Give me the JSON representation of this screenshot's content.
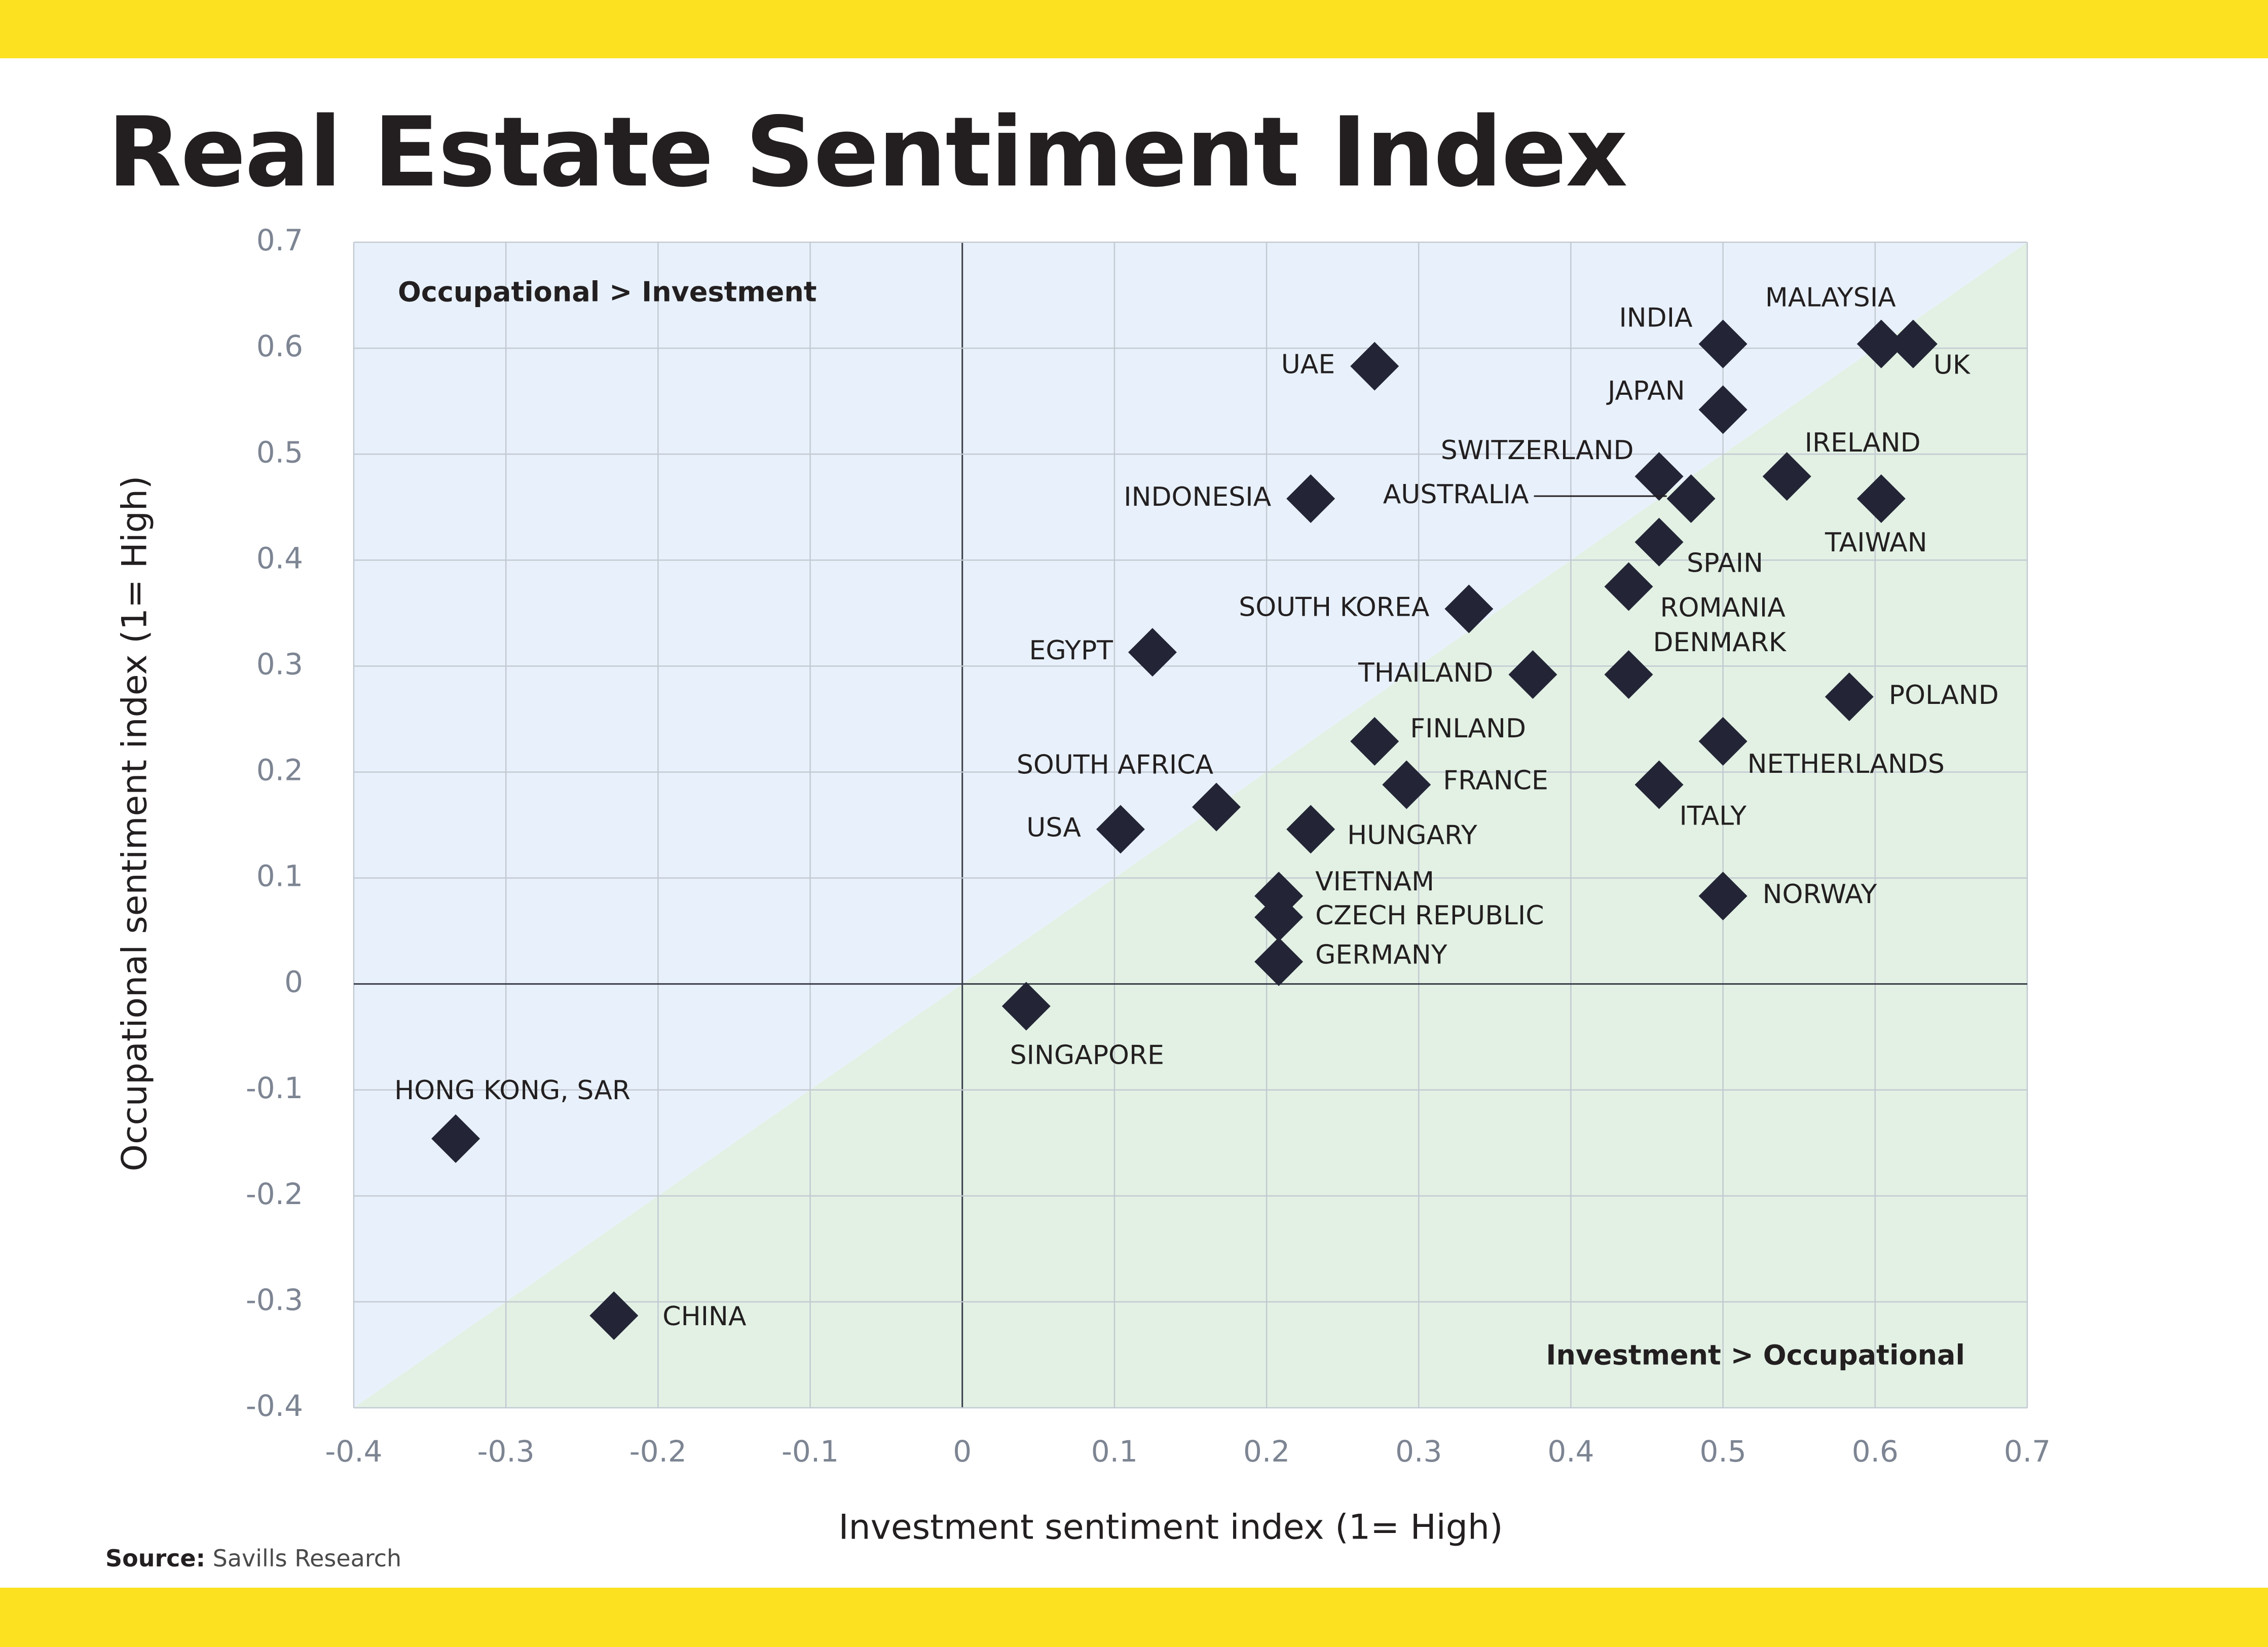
{
  "title": "Real Estate Sentiment Index",
  "source": {
    "label": "Source:",
    "text": "Savills Research"
  },
  "colors": {
    "band": "#fbe11f",
    "occupational_region": "#e8f1fb",
    "investment_region": "#e2f1e4",
    "marker": "#232536",
    "gridline": "#c3c9d1",
    "zero_line": "#3a3d48"
  },
  "chart_data": {
    "type": "scatter",
    "title": "Real Estate Sentiment Index",
    "xlabel": "Investment sentiment index (1= High)",
    "ylabel": "Occupational sentiment index (1= High)",
    "xlim": [
      -0.4,
      0.7
    ],
    "ylim": [
      -0.4,
      0.7
    ],
    "x_ticks": [
      "-0.4",
      "-0.3",
      "-0.2",
      "-0.1",
      "0",
      "0.1",
      "0.2",
      "0.3",
      "0.4",
      "0.5",
      "0.6",
      "0.7"
    ],
    "y_ticks": [
      "0.7",
      "0.6",
      "0.5",
      "0.4",
      "0.3",
      "0.2",
      "0.1",
      "0",
      "-0.1",
      "-0.2",
      "-0.3",
      "-0.4"
    ],
    "grid": true,
    "diagonal": "y = x",
    "regions": [
      {
        "label": "Occupational > Investment",
        "area": "above diagonal"
      },
      {
        "label": "Investment > Occupational",
        "area": "below diagonal"
      }
    ],
    "marker": "diamond",
    "points": [
      {
        "label": "MALAYSIA",
        "x": 0.604,
        "y": 0.604
      },
      {
        "label": "UK",
        "x": 0.625,
        "y": 0.604
      },
      {
        "label": "INDIA",
        "x": 0.5,
        "y": 0.604
      },
      {
        "label": "UAE",
        "x": 0.271,
        "y": 0.583
      },
      {
        "label": "JAPAN",
        "x": 0.5,
        "y": 0.542
      },
      {
        "label": "SWITZERLAND",
        "x": 0.458,
        "y": 0.479
      },
      {
        "label": "IRELAND",
        "x": 0.542,
        "y": 0.479
      },
      {
        "label": "AUSTRALIA",
        "x": 0.479,
        "y": 0.458
      },
      {
        "label": "INDONESIA",
        "x": 0.229,
        "y": 0.458
      },
      {
        "label": "TAIWAN",
        "x": 0.604,
        "y": 0.458
      },
      {
        "label": "SPAIN",
        "x": 0.458,
        "y": 0.417
      },
      {
        "label": "ROMANIA",
        "x": 0.438,
        "y": 0.375
      },
      {
        "label": "SOUTH KOREA",
        "x": 0.333,
        "y": 0.354
      },
      {
        "label": "EGYPT",
        "x": 0.125,
        "y": 0.313
      },
      {
        "label": "DENMARK",
        "x": 0.438,
        "y": 0.292
      },
      {
        "label": "THAILAND",
        "x": 0.375,
        "y": 0.292
      },
      {
        "label": "POLAND",
        "x": 0.583,
        "y": 0.271
      },
      {
        "label": "NETHERLANDS",
        "x": 0.5,
        "y": 0.229
      },
      {
        "label": "FINLAND",
        "x": 0.271,
        "y": 0.229
      },
      {
        "label": "FRANCE",
        "x": 0.292,
        "y": 0.188
      },
      {
        "label": "ITALY",
        "x": 0.458,
        "y": 0.188
      },
      {
        "label": "SOUTH AFRICA",
        "x": 0.167,
        "y": 0.167
      },
      {
        "label": "USA",
        "x": 0.104,
        "y": 0.146
      },
      {
        "label": "HUNGARY",
        "x": 0.229,
        "y": 0.146
      },
      {
        "label": "VIETNAM",
        "x": 0.208,
        "y": 0.083
      },
      {
        "label": "NORWAY",
        "x": 0.5,
        "y": 0.083
      },
      {
        "label": "CZECH REPUBLIC",
        "x": 0.208,
        "y": 0.063
      },
      {
        "label": "GERMANY",
        "x": 0.208,
        "y": 0.021
      },
      {
        "label": "SINGAPORE",
        "x": 0.042,
        "y": -0.021
      },
      {
        "label": "HONG KONG, SAR",
        "x": -0.333,
        "y": -0.146
      },
      {
        "label": "CHINA",
        "x": -0.229,
        "y": -0.313
      }
    ]
  }
}
